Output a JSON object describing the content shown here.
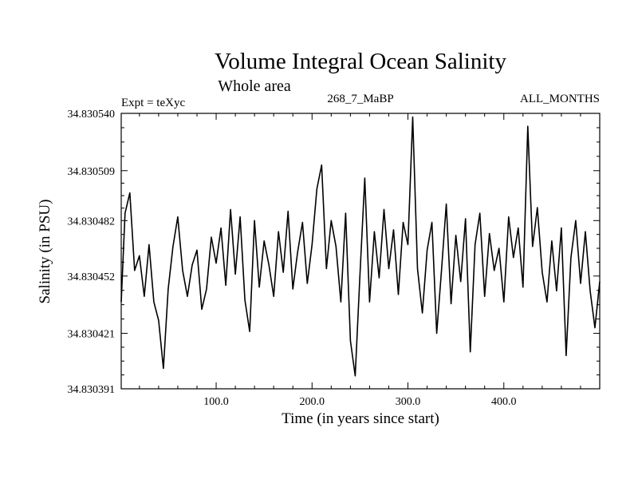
{
  "chart_data": {
    "type": "line",
    "title": "Volume Integral Ocean Salinity",
    "subtitle": "Whole area",
    "annotations": {
      "left": "Expt = teXyc",
      "center": "268_7_MaBP",
      "right": "ALL_MONTHS"
    },
    "xlabel": "Time (in years since start)",
    "ylabel": "Salinity (in PSU)",
    "xlim": [
      1,
      500
    ],
    "ylim": [
      34.830391,
      34.83054
    ],
    "xticks": [
      100,
      200,
      300,
      400
    ],
    "xtick_labels": [
      "100.0",
      "200.0",
      "300.0",
      "400.0"
    ],
    "yticks": [
      34.830391,
      34.830421,
      34.830452,
      34.830482,
      34.830509,
      34.83054
    ],
    "ytick_labels": [
      "34.830391",
      "34.830421",
      "34.830452",
      "34.830482",
      "34.830509",
      "34.830540"
    ],
    "grid": false,
    "line_color": "#000000",
    "series": [
      {
        "x": [
          1,
          5,
          10,
          15,
          20,
          25,
          30,
          35,
          40,
          45,
          50,
          55,
          60,
          65,
          70,
          75,
          80,
          85,
          90,
          95,
          100,
          105,
          110,
          115,
          120,
          125,
          130,
          135,
          140,
          145,
          150,
          155,
          160,
          165,
          170,
          175,
          180,
          185,
          190,
          195,
          200,
          205,
          210,
          215,
          220,
          225,
          230,
          235,
          240,
          245,
          250,
          255,
          260,
          265,
          270,
          275,
          280,
          285,
          290,
          295,
          300,
          305,
          310,
          315,
          320,
          325,
          330,
          335,
          340,
          345,
          350,
          355,
          360,
          365,
          370,
          375,
          380,
          385,
          390,
          395,
          400,
          405,
          410,
          415,
          420,
          425,
          430,
          435,
          440,
          445,
          450,
          455,
          460,
          465,
          470,
          475,
          480,
          485,
          490,
          495,
          500
        ],
        "values": [
          34.830438,
          34.830486,
          34.830497,
          34.830455,
          34.830463,
          34.830441,
          34.830469,
          34.830438,
          34.830428,
          34.830402,
          34.830445,
          34.830468,
          34.830484,
          34.830455,
          34.830441,
          34.830458,
          34.830466,
          34.830434,
          34.830445,
          34.830473,
          34.830459,
          34.830478,
          34.830447,
          34.830488,
          34.830453,
          34.830484,
          34.830439,
          34.830422,
          34.830482,
          34.830446,
          34.830471,
          34.830458,
          34.830441,
          34.830476,
          34.830454,
          34.830487,
          34.830445,
          34.830465,
          34.830481,
          34.830448,
          34.830469,
          34.830499,
          34.830512,
          34.830456,
          34.830482,
          34.830468,
          34.830438,
          34.830486,
          34.830417,
          34.830398,
          34.830453,
          34.830505,
          34.830438,
          34.830476,
          34.830451,
          34.830488,
          34.830456,
          34.830477,
          34.830442,
          34.830481,
          34.830469,
          34.830538,
          34.830456,
          34.830432,
          34.830466,
          34.830481,
          34.830421,
          34.830455,
          34.830491,
          34.830437,
          34.830474,
          34.830449,
          34.830483,
          34.830411,
          34.830469,
          34.830486,
          34.830441,
          34.830475,
          34.830455,
          34.830467,
          34.830438,
          34.830484,
          34.830462,
          34.830478,
          34.830446,
          34.830533,
          34.830468,
          34.830489,
          34.830454,
          34.830438,
          34.830471,
          34.830444,
          34.830478,
          34.830409,
          34.830462,
          34.830482,
          34.830448,
          34.830476,
          34.830444,
          34.830424,
          34.830449
        ]
      }
    ]
  }
}
